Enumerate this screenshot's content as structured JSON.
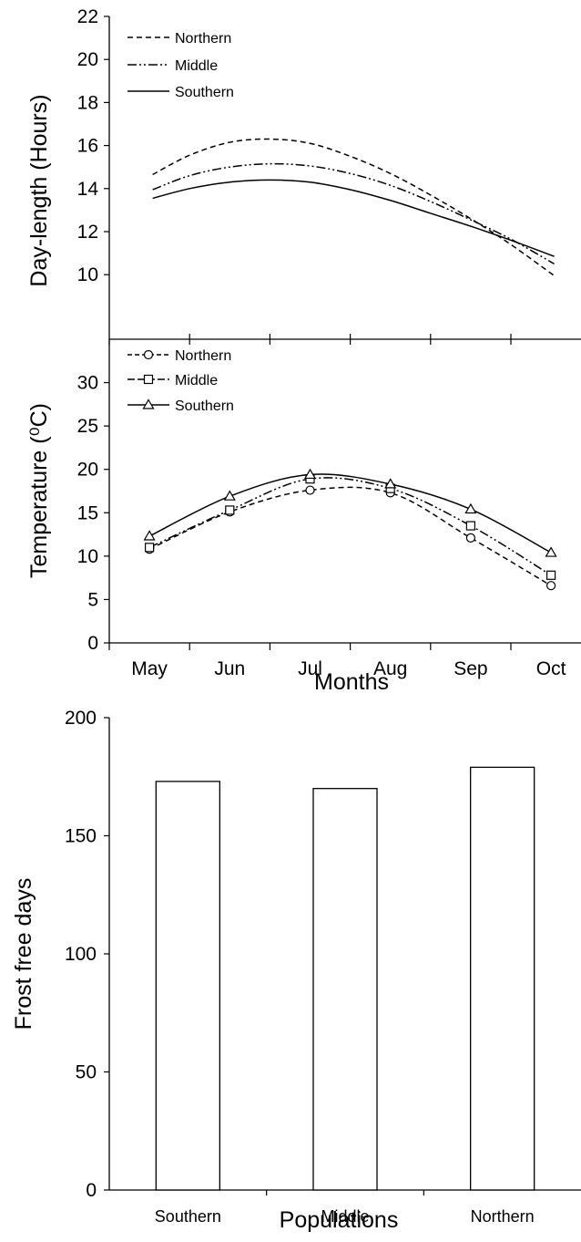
{
  "chart_data": [
    {
      "type": "line",
      "ylabel": "Day-length (Hours)",
      "ylim": [
        7,
        22
      ],
      "yticks": [
        10,
        12,
        14,
        16,
        18,
        20,
        22
      ],
      "x_categories": [
        "May",
        "Jun",
        "Jul",
        "Aug",
        "Sep",
        "Oct"
      ],
      "series": [
        {
          "name": "Northern",
          "style": "dashed",
          "x": [
            0.54,
            1,
            1.5,
            2,
            2.5,
            3,
            3.5,
            4,
            4.5,
            5,
            5.54
          ],
          "values": [
            14.65,
            15.55,
            16.15,
            16.3,
            16.1,
            15.5,
            14.7,
            13.7,
            12.6,
            11.4,
            9.95
          ]
        },
        {
          "name": "Middle",
          "style": "dash-dot-dot",
          "x": [
            0.54,
            1,
            1.5,
            2,
            2.5,
            3,
            3.5,
            4,
            4.5,
            5,
            5.54
          ],
          "values": [
            13.95,
            14.6,
            15.0,
            15.15,
            15.05,
            14.7,
            14.15,
            13.4,
            12.55,
            11.65,
            10.5
          ]
        },
        {
          "name": "Southern",
          "style": "solid",
          "x": [
            0.54,
            1,
            1.5,
            2,
            2.5,
            3,
            3.5,
            4,
            4.5,
            5,
            5.54
          ],
          "values": [
            13.55,
            14.0,
            14.3,
            14.4,
            14.3,
            13.95,
            13.45,
            12.85,
            12.25,
            11.6,
            10.85
          ]
        }
      ],
      "legend_placement": "top-left"
    },
    {
      "type": "line",
      "ylabel": "Temperature (⁰C)",
      "xlabel": "Months",
      "ylim": [
        0,
        35
      ],
      "yticks": [
        0,
        5,
        10,
        15,
        20,
        25,
        30
      ],
      "categories": [
        "May",
        "Jun",
        "Jul",
        "Aug",
        "Sep",
        "Oct"
      ],
      "series": [
        {
          "name": "Northern",
          "style": "dashed",
          "marker": "circle",
          "values": [
            10.8,
            15.1,
            17.6,
            17.3,
            12.1,
            6.6
          ]
        },
        {
          "name": "Middle",
          "style": "dash-dot-dot",
          "marker": "square",
          "values": [
            11.0,
            15.3,
            18.9,
            17.8,
            13.5,
            7.8
          ]
        },
        {
          "name": "Southern",
          "style": "solid",
          "marker": "triangle",
          "values": [
            12.3,
            16.9,
            19.4,
            18.3,
            15.4,
            10.4
          ]
        }
      ],
      "legend_placement": "top-left"
    },
    {
      "type": "bar",
      "ylabel": "Frost free days",
      "xlabel": "Populations",
      "ylim": [
        0,
        200
      ],
      "yticks": [
        0,
        50,
        100,
        150,
        200
      ],
      "categories": [
        "Southern",
        "Middle",
        "Northern"
      ],
      "values": [
        173,
        170,
        179
      ]
    }
  ]
}
